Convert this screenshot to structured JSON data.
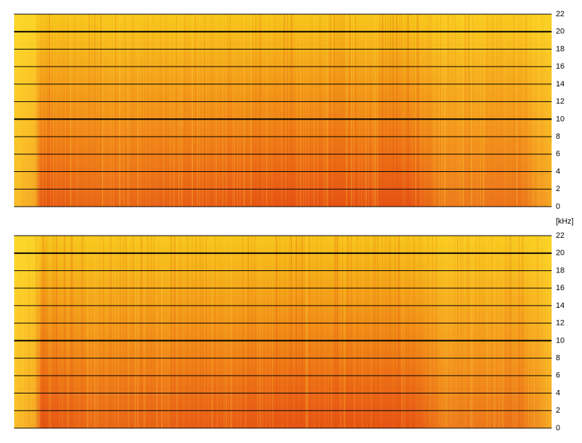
{
  "chart_data": [
    {
      "type": "spectrogram",
      "ylabel": "[kHz]",
      "ylim": [
        0,
        22
      ],
      "yticks": [
        0,
        2,
        4,
        6,
        8,
        10,
        12,
        14,
        16,
        18,
        20,
        22
      ],
      "bold_ticks": [
        10,
        20
      ]
    },
    {
      "type": "spectrogram",
      "ylim": [
        0,
        22
      ],
      "yticks": [
        0,
        2,
        4,
        6,
        8,
        10,
        12,
        14,
        16,
        18,
        20,
        22
      ],
      "bold_ticks": [
        10,
        20
      ]
    }
  ]
}
